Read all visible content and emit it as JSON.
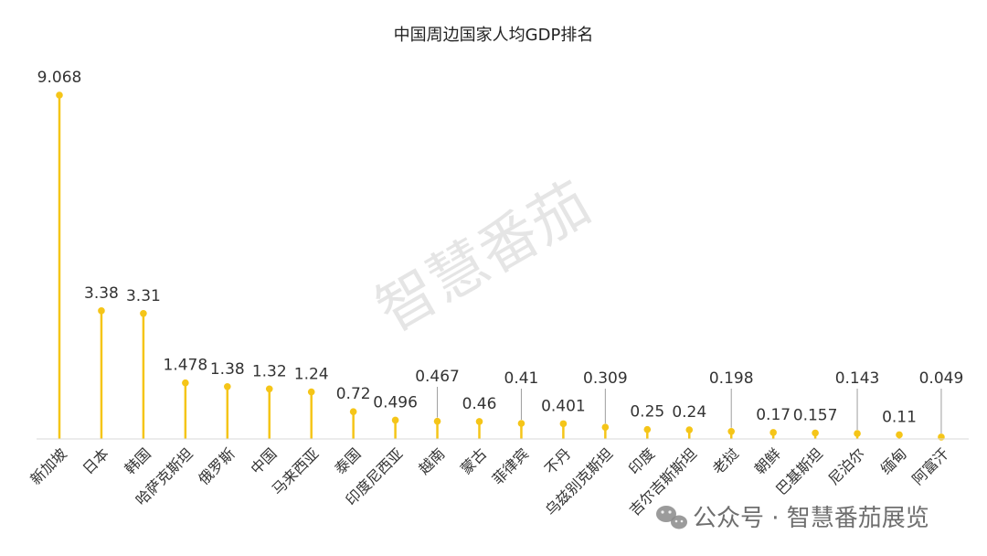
{
  "chart_data": {
    "type": "bar",
    "title": "中国周边国家人均GDP排名",
    "xlabel": "",
    "ylabel": "",
    "ylim": [
      0,
      9.068
    ],
    "grid": false,
    "legend": "none",
    "categories": [
      "新加坡",
      "日本",
      "韩国",
      "哈萨克斯坦",
      "俄罗斯",
      "中国",
      "马来西亚",
      "泰国",
      "印度尼西亚",
      "越南",
      "蒙古",
      "菲律宾",
      "不丹",
      "乌兹别克斯坦",
      "印度",
      "吉尔吉斯斯坦",
      "老挝",
      "朝鲜",
      "巴基斯坦",
      "尼泊尔",
      "缅甸",
      "阿富汗"
    ],
    "values": [
      9.068,
      3.38,
      3.31,
      1.478,
      1.38,
      1.32,
      1.24,
      0.72,
      0.496,
      0.467,
      0.46,
      0.41,
      0.401,
      0.309,
      0.25,
      0.24,
      0.198,
      0.17,
      0.157,
      0.143,
      0.11,
      0.049
    ],
    "value_labels": [
      "9.068",
      "3.38",
      "3.31",
      "1.478",
      "1.38",
      "1.32",
      "1.24",
      "0.72",
      "0.496",
      "0.467",
      "0.46",
      "0.41",
      "0.401",
      "0.309",
      "0.25",
      "0.24",
      "0.198",
      "0.17",
      "0.157",
      "0.143",
      "0.11",
      "0.049"
    ],
    "colors": {
      "bar": "#F5C518",
      "axis": "#D9D9D9",
      "leader": "#9E9E9E"
    }
  },
  "watermark": {
    "text": "智慧番茄",
    "footer": "公众号 · 智慧番茄展览",
    "icon": "wechat-icon"
  }
}
